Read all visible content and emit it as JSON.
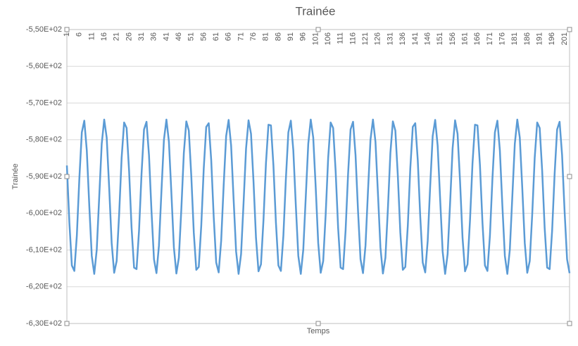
{
  "chart_data": {
    "type": "line",
    "title": "Trainée",
    "x_label": "Temps",
    "y_label": "Trainée",
    "color": "#5b9bd5",
    "grid": true,
    "ylim": [
      -630,
      -550
    ],
    "yticks": [
      {
        "value": -630,
        "label": "-6,30E+02"
      },
      {
        "value": -620,
        "label": "-6,20E+02"
      },
      {
        "value": -610,
        "label": "-6,10E+02"
      },
      {
        "value": -600,
        "label": "-6,00E+02"
      },
      {
        "value": -590,
        "label": "-5,90E+02"
      },
      {
        "value": -580,
        "label": "-5,80E+02"
      },
      {
        "value": -570,
        "label": "-5,70E+02"
      },
      {
        "value": -560,
        "label": "-5,60E+02"
      },
      {
        "value": -550,
        "label": "-5,50E+02"
      }
    ],
    "categories": [
      1,
      null,
      null,
      null,
      null,
      6,
      null,
      null,
      null,
      null,
      11,
      null,
      null,
      null,
      null,
      16,
      null,
      null,
      null,
      null,
      21,
      null,
      null,
      null,
      null,
      26,
      null,
      null,
      null,
      null,
      31,
      null,
      null,
      null,
      null,
      36,
      null,
      null,
      null,
      null,
      41,
      null,
      null,
      null,
      null,
      46,
      null,
      null,
      null,
      null,
      51,
      null,
      null,
      null,
      null,
      56,
      null,
      null,
      null,
      null,
      61,
      null,
      null,
      null,
      null,
      66,
      null,
      null,
      null,
      null,
      71,
      null,
      null,
      null,
      null,
      76,
      null,
      null,
      null,
      null,
      81,
      null,
      null,
      null,
      null,
      86,
      null,
      null,
      null,
      null,
      91,
      null,
      null,
      null,
      null,
      96,
      null,
      null,
      null,
      null,
      101,
      null,
      null,
      null,
      null,
      106,
      null,
      null,
      null,
      null,
      111,
      null,
      null,
      null,
      null,
      116,
      null,
      null,
      null,
      null,
      121,
      null,
      null,
      null,
      null,
      126,
      null,
      null,
      null,
      null,
      131,
      null,
      null,
      null,
      null,
      136,
      null,
      null,
      null,
      null,
      141,
      null,
      null,
      null,
      null,
      146,
      null,
      null,
      null,
      null,
      151,
      null,
      null,
      null,
      null,
      156,
      null,
      null,
      null,
      null,
      161,
      null,
      null,
      null,
      null,
      166,
      null,
      null,
      null,
      null,
      171,
      null,
      null,
      null,
      null,
      176,
      null,
      null,
      null,
      null,
      181,
      null,
      null,
      null,
      null,
      186,
      null,
      null,
      null,
      null,
      191,
      null,
      null,
      null,
      null,
      196,
      null,
      null,
      null,
      null,
      201,
      null,
      null
    ],
    "values": [
      -587.0,
      -602.5,
      -614.2,
      -615.7,
      -606.1,
      -590.7,
      -578.0,
      -574.8,
      -582.9,
      -597.9,
      -611.6,
      -616.5,
      -609.9,
      -595.5,
      -581.1,
      -574.5,
      -579.4,
      -593.1,
      -608.1,
      -616.2,
      -613.0,
      -600.3,
      -584.9,
      -575.3,
      -576.8,
      -588.5,
      -604.0,
      -614.8,
      -615.2,
      -604.7,
      -589.3,
      -577.2,
      -575.1,
      -584.2,
      -599.4,
      -612.5,
      -616.3,
      -608.8,
      -594.0,
      -580.0,
      -574.5,
      -580.5,
      -594.6,
      -609.3,
      -616.4,
      -612.1,
      -598.8,
      -583.6,
      -575.0,
      -577.5,
      -589.9,
      -605.3,
      -615.4,
      -614.6,
      -603.4,
      -587.8,
      -576.5,
      -575.5,
      -585.5,
      -600.9,
      -613.4,
      -616.1,
      -607.5,
      -592.5,
      -579.0,
      -574.6,
      -581.6,
      -596.2,
      -610.4,
      -616.5,
      -611.1,
      -597.2,
      -582.4,
      -574.7,
      -578.4,
      -591.4,
      -606.7,
      -615.8,
      -613.9,
      -601.9,
      -586.4,
      -575.9,
      -576.1,
      -587.0,
      -602.5,
      -614.2,
      -615.7,
      -606.1,
      -590.7,
      -578.0,
      -574.8,
      -582.9,
      -597.9,
      -611.6,
      -616.5,
      -609.9,
      -595.5,
      -581.1,
      -574.5,
      -579.4,
      -593.1,
      -608.1,
      -616.2,
      -613.0,
      -600.3,
      -584.9,
      -575.3,
      -576.8,
      -588.5,
      -604.0,
      -614.8,
      -615.2,
      -604.7,
      -589.3,
      -577.2,
      -575.1,
      -584.2,
      -599.4,
      -612.5,
      -616.3,
      -608.8,
      -594.0,
      -580.0,
      -574.5,
      -580.5,
      -594.6,
      -609.3,
      -616.4,
      -612.1,
      -598.8,
      -583.6,
      -575.0,
      -577.5,
      -589.9,
      -605.3,
      -615.4,
      -614.6,
      -603.4,
      -587.8,
      -576.5,
      -575.5,
      -585.5,
      -600.9,
      -613.4,
      -616.1,
      -607.5,
      -592.5,
      -579.0,
      -574.6,
      -581.6,
      -596.2,
      -610.4,
      -616.5,
      -611.1,
      -597.2,
      -582.4,
      -574.7,
      -578.4,
      -591.4,
      -606.7,
      -615.8,
      -613.9,
      -601.9,
      -586.4,
      -575.9,
      -576.1,
      -587.0,
      -602.5,
      -614.2,
      -615.7,
      -606.1,
      -590.7,
      -578.0,
      -574.8,
      -582.9,
      -597.9,
      -611.6,
      -616.5,
      -609.9,
      -595.5,
      -581.1,
      -574.5,
      -579.4,
      -593.1,
      -608.1,
      -616.2,
      -613.0,
      -600.3,
      -584.9,
      -575.3,
      -576.8,
      -588.5,
      -604.0,
      -614.8,
      -615.2,
      -604.7,
      -589.3,
      -577.2,
      -575.1,
      -584.2,
      -599.4,
      -612.5,
      -616.3
    ]
  }
}
